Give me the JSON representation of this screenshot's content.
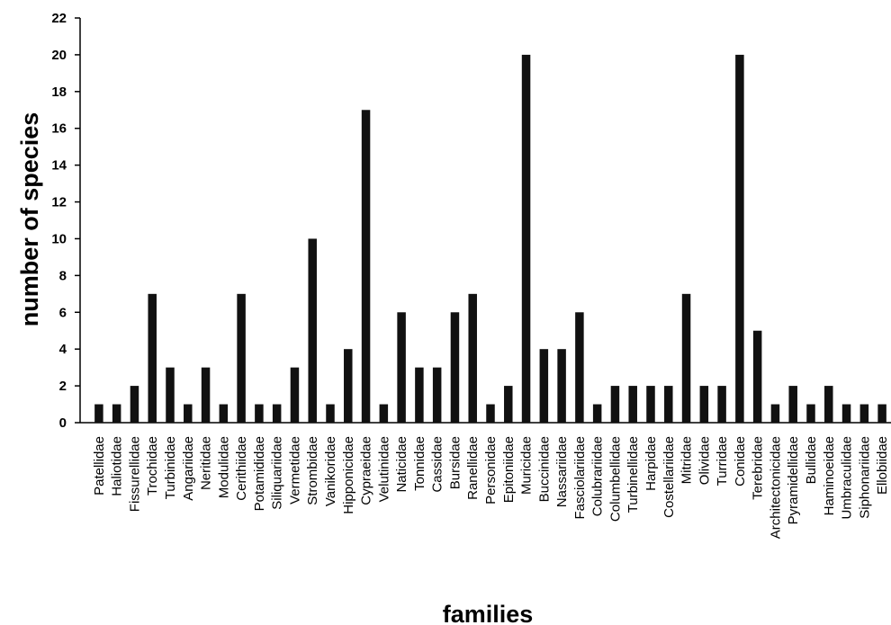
{
  "chart_data": {
    "type": "bar",
    "title": "",
    "xlabel": "families",
    "ylabel": "number of species",
    "ylim": [
      0,
      22
    ],
    "yticks": [
      0,
      2,
      4,
      6,
      8,
      10,
      12,
      14,
      16,
      18,
      20,
      22
    ],
    "grid": false,
    "bar_color": "#111111",
    "categories": [
      "Patellidae",
      "Haliotidae",
      "Fissurellidae",
      "Trochidae",
      "Turbinidae",
      "Angariidae",
      "Neritidae",
      "Modulidae",
      "Cerithiidae",
      "Potamididae",
      "Siliquariidae",
      "Vermetidae",
      "Strombidae",
      "Vanikoridae",
      "Hipponicidae",
      "Cypraeidae",
      "Velutinidae",
      "Naticidae",
      "Tonnidae",
      "Cassidae",
      "Bursidae",
      "Ranellidae",
      "Personidae",
      "Epitoniidae",
      "Muricidae",
      "Buccinidae",
      "Nassariidae",
      "Fasciolariidae",
      "Colubrariidae",
      "Columbellidae",
      "Turbinellidae",
      "Harpidae",
      "Costellariidae",
      "Mitridae",
      "Olividae",
      "Turridae",
      "Conidae",
      "Terebridae",
      "Architectonicidae",
      "Pyramidellidae",
      "Bullidae",
      "Haminoeidae",
      "Umbraculidae",
      "Siphonariidae",
      "Ellobiidae"
    ],
    "values": [
      1,
      1,
      2,
      7,
      3,
      1,
      3,
      1,
      7,
      1,
      1,
      3,
      10,
      1,
      4,
      17,
      1,
      6,
      3,
      3,
      6,
      7,
      1,
      2,
      20,
      4,
      4,
      6,
      1,
      2,
      2,
      2,
      2,
      7,
      2,
      2,
      20,
      5,
      1,
      2,
      1,
      2,
      1,
      1,
      1
    ]
  }
}
